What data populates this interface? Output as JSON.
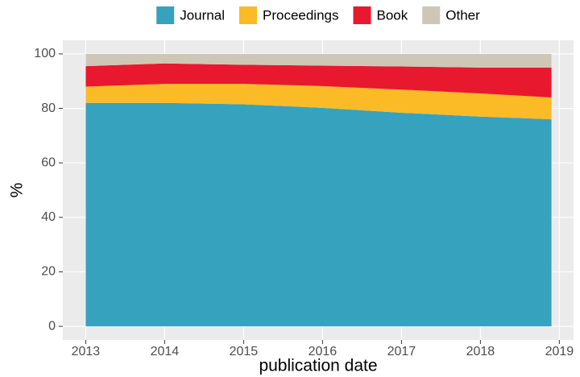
{
  "chart_data": {
    "type": "stacked_area",
    "x_label": "publication date",
    "y_label": "%",
    "x": [
      2013,
      2014,
      2015,
      2016,
      2017,
      2018,
      2018.9
    ],
    "series": [
      {
        "name": "Journal",
        "color": "#36a2be",
        "values": [
          82,
          82,
          81.5,
          80.2,
          78.4,
          77,
          76
        ]
      },
      {
        "name": "Proceedings",
        "color": "#fbbb26",
        "values": [
          6,
          7,
          7.5,
          8,
          8.5,
          8.5,
          8
        ]
      },
      {
        "name": "Book",
        "color": "#e8182f",
        "values": [
          7.5,
          7.5,
          7,
          7.5,
          8.5,
          9.5,
          11
        ]
      },
      {
        "name": "Other",
        "color": "#cfc7b6",
        "values": [
          4.5,
          3.5,
          4,
          4.3,
          4.6,
          5,
          5
        ]
      }
    ],
    "xlim": [
      2012.71,
      2019.18
    ],
    "xticks": [
      2013,
      2014,
      2015,
      2016,
      2017,
      2018,
      2019
    ],
    "ylim": [
      -5,
      105
    ],
    "yticks": [
      0,
      20,
      40,
      60,
      80,
      100
    ],
    "grid": true,
    "legend": "top"
  }
}
